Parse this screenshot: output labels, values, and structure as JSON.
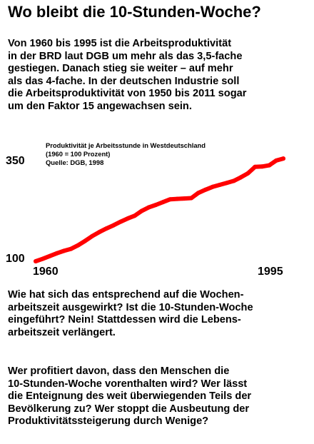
{
  "header": {
    "title": "Wo bleibt die 10-Stunden-Woche?"
  },
  "intro": {
    "lines": [
      "Von 1960 bis 1995 ist die Arbeitsproduktivität",
      "in der BRD laut DGB um mehr als das 3,5-fache",
      "gestiegen. Danach stieg sie weiter – auf mehr",
      "als das 4-fache. In der deutschen Industrie soll",
      "die Arbeitsproduktivität von 1950 bis 2011 sogar",
      "um den Faktor 15 angewachsen sein."
    ]
  },
  "question1": {
    "lines": [
      "Wie hat sich das entsprechend auf die Wochen-",
      "arbeitszeit ausgewirkt? Ist die 10-Stunden-Woche",
      "eingeführt? Nein! Stattdessen wird die Lebens-",
      "arbeitszeit verlängert."
    ]
  },
  "question2": {
    "lines": [
      "Wer profitiert davon, dass den Menschen die",
      "10-Stunden-Woche vorenthalten wird? Wer lässt",
      "die Enteignung des weit überwiegenden Teils der",
      "Bevölkerung zu? Wer stoppt die Ausbeutung der",
      "Produktivitätssteigerung durch Wenige?"
    ]
  },
  "chart_data": {
    "type": "line",
    "title_lines": [
      "Produktivität je Arbeitsstunde in Westdeutschland",
      "(1960 = 100 Prozent)",
      "Quelle: DGB, 1998"
    ],
    "xlabel": "",
    "ylabel": "",
    "x_ticks": [
      "1960",
      "1995"
    ],
    "y_ticks": [
      "100",
      "350"
    ],
    "xlim": [
      1960,
      1995
    ],
    "ylim": [
      100,
      350
    ],
    "grid": false,
    "line_color": "#ff0000",
    "series": [
      {
        "x": [
          1960,
          1961,
          1962,
          1963,
          1964,
          1965,
          1966,
          1967,
          1968,
          1969,
          1970,
          1971,
          1972,
          1973,
          1974,
          1975,
          1976,
          1977,
          1978,
          1979,
          1980,
          1981,
          1982,
          1983,
          1984,
          1985,
          1986,
          1987,
          1988,
          1989,
          1990,
          1991,
          1992,
          1993,
          1994,
          1995
        ],
        "y": [
          100,
          106,
          113,
          120,
          126,
          131,
          140,
          151,
          163,
          173,
          182,
          190,
          199,
          207,
          214,
          226,
          235,
          241,
          248,
          255,
          256,
          257,
          258,
          271,
          279,
          286,
          291,
          296,
          301,
          310,
          320,
          336,
          337,
          340,
          352,
          357
        ]
      }
    ]
  }
}
